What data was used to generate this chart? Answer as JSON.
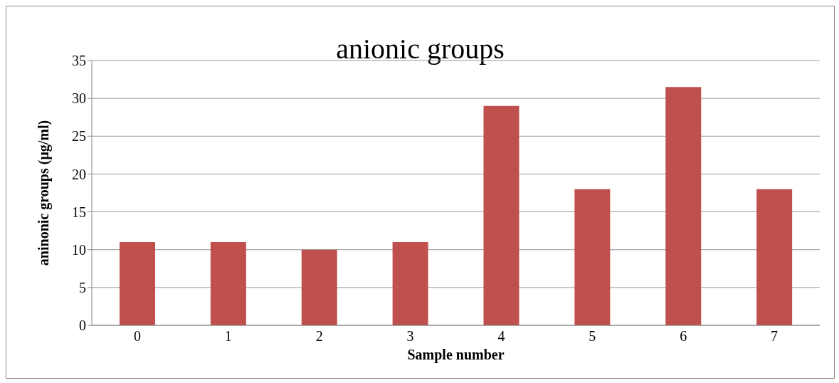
{
  "chart_data": {
    "type": "bar",
    "title": "anionic groups",
    "xlabel": "Sample number",
    "ylabel": "aninonic groups (μg/ml)",
    "categories": [
      "0",
      "1",
      "2",
      "3",
      "4",
      "5",
      "6",
      "7"
    ],
    "values": [
      11,
      11,
      10,
      11,
      29,
      18,
      31.5,
      18
    ],
    "color": "#c0504d",
    "ylim": [
      0,
      35
    ],
    "yticks": [
      0,
      5,
      10,
      15,
      20,
      25,
      30,
      35
    ],
    "grid": "y"
  }
}
